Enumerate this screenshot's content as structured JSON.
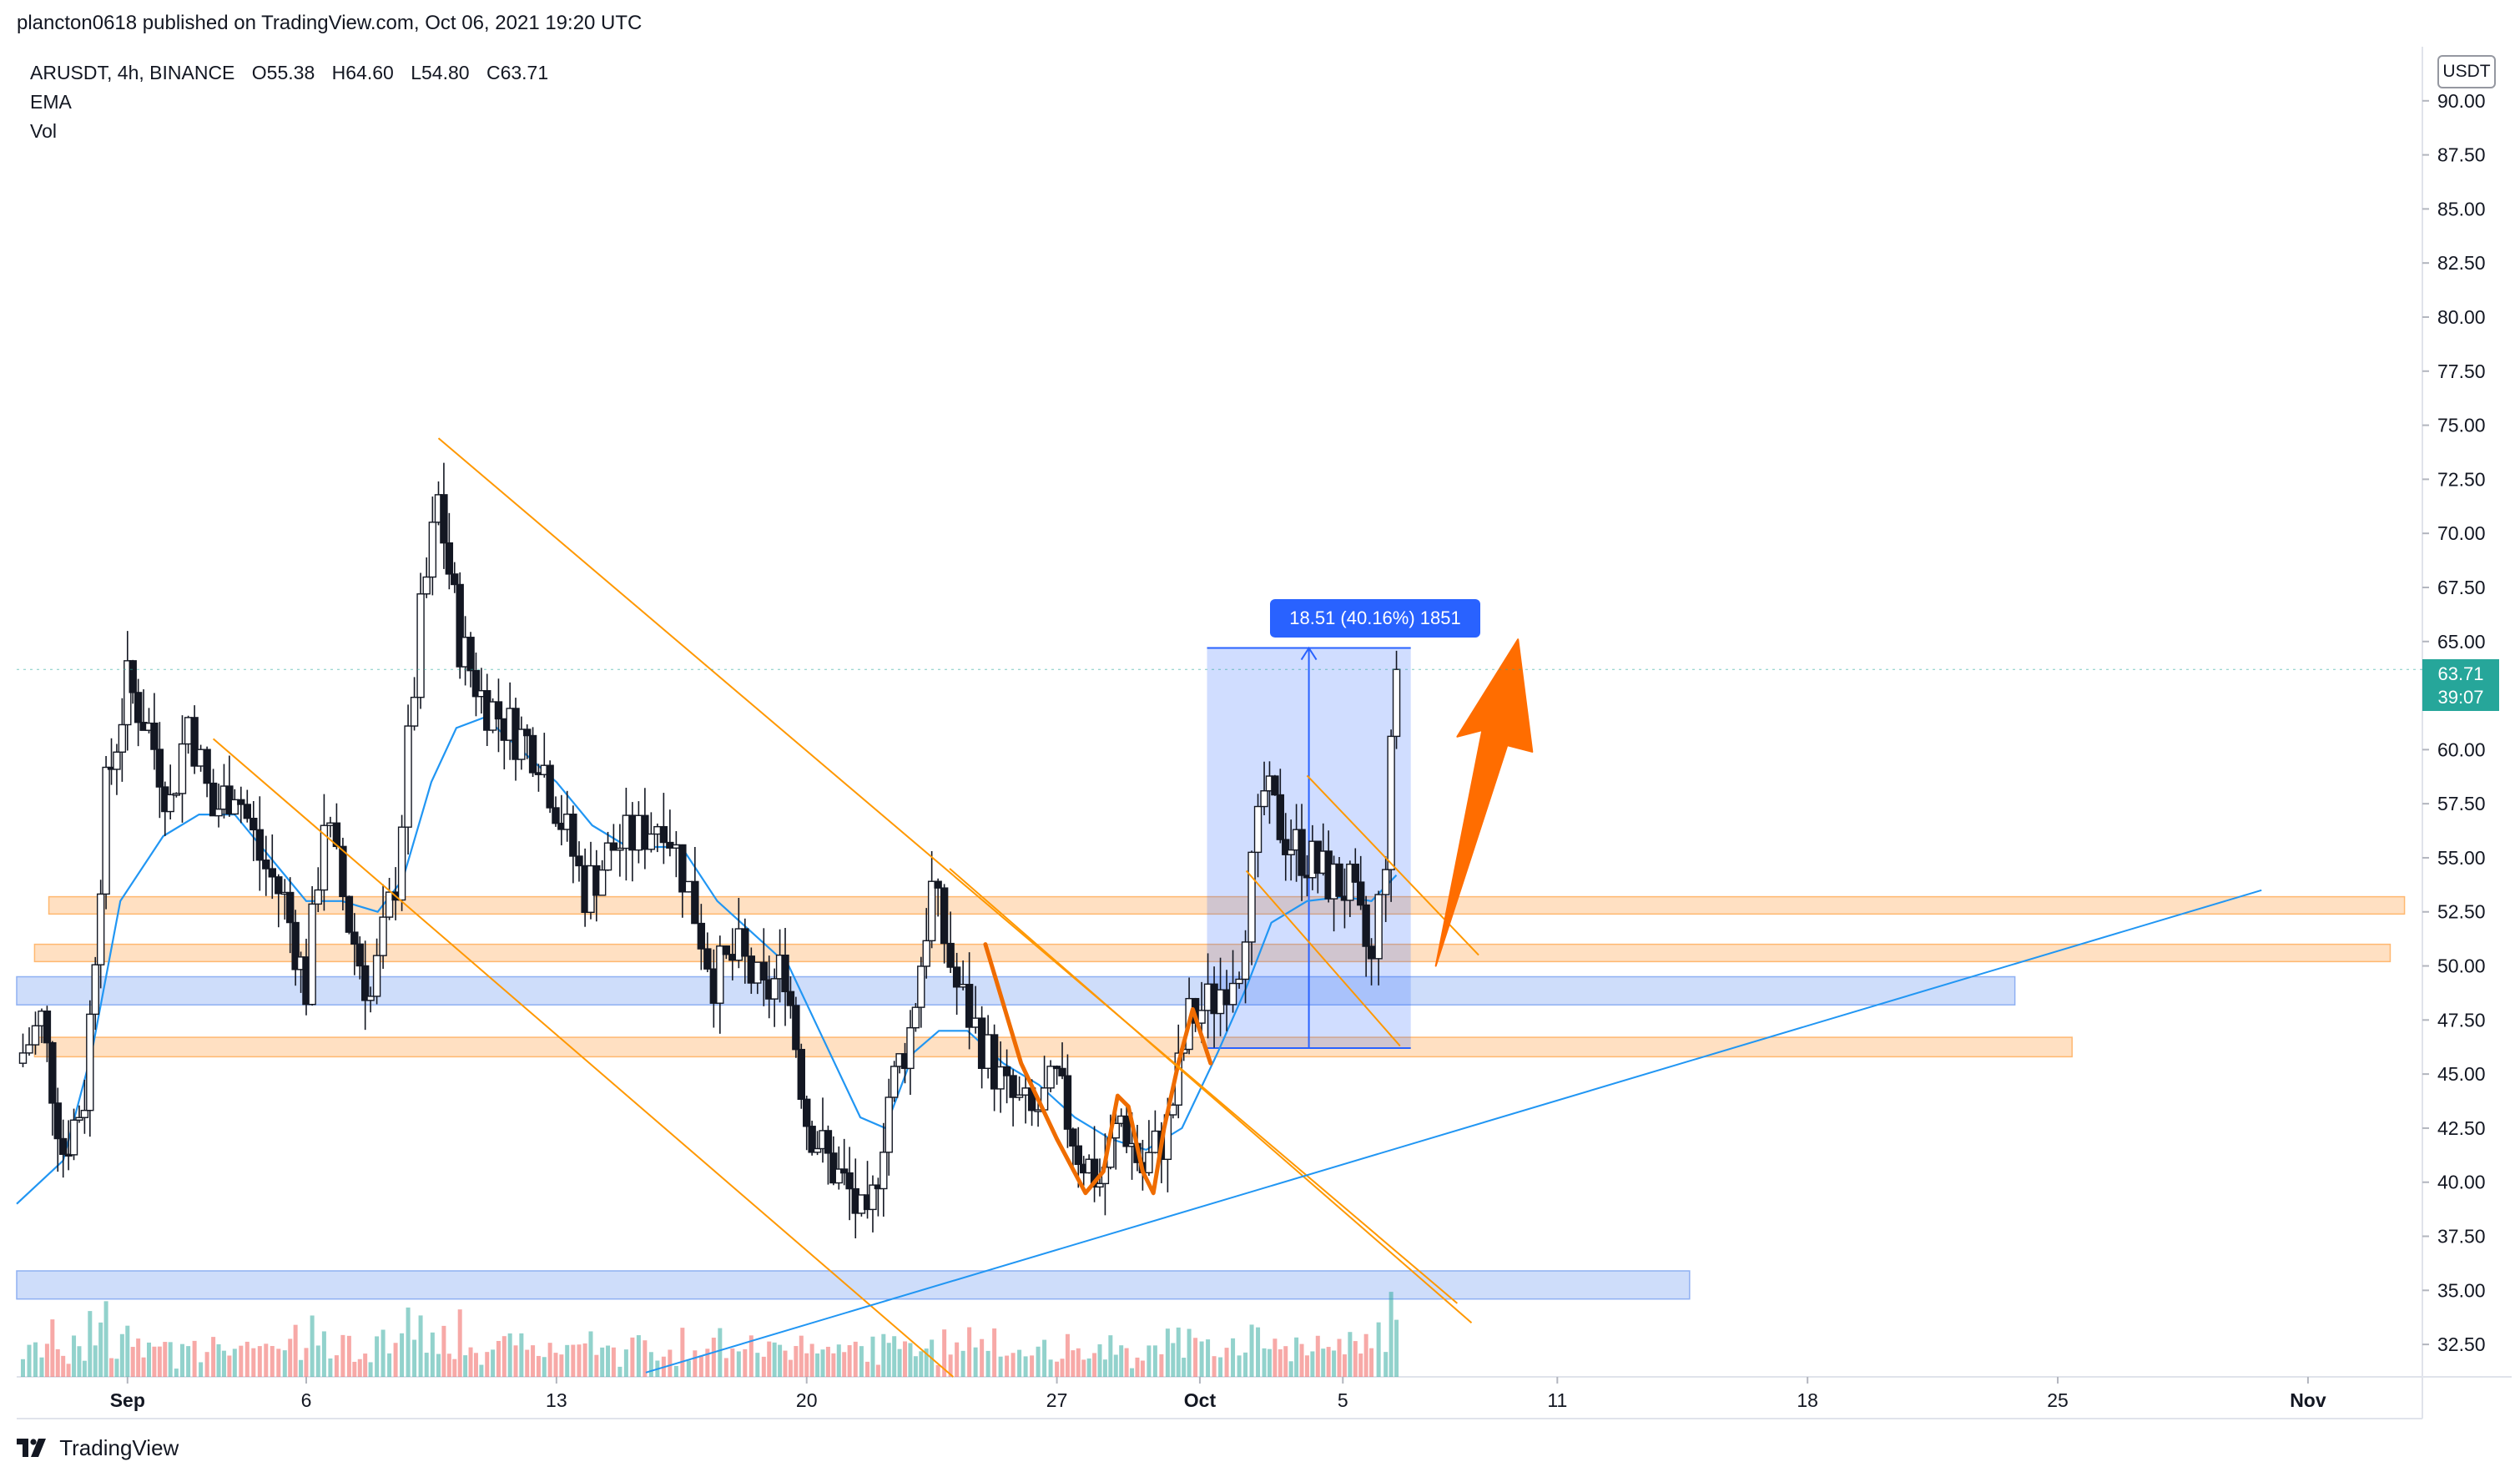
{
  "header": {
    "published": "plancton0618 published on TradingView.com, Oct 06, 2021 19:20 UTC"
  },
  "legend": {
    "symbol": "ARUSDT, 4h, BINANCE",
    "ohlc": {
      "o": "O55.38",
      "h": "H64.60",
      "l": "L54.80",
      "c": "C63.71"
    },
    "indicators": [
      "EMA",
      "Vol"
    ]
  },
  "footer": {
    "brand": "TradingView"
  },
  "axis": {
    "unit": "USDT",
    "current_price": "63.71",
    "countdown": "39:07"
  },
  "measure": {
    "label": "18.51 (40.16%) 1851"
  },
  "colors": {
    "up": "#26a69a",
    "down": "#ef5350",
    "candle": "#131722",
    "ema": "#2196f3",
    "orange_zone": "#ffcc99",
    "blue_zone": "#aec6f7",
    "trend_orange": "#ff9800",
    "trend_blue": "#2196f3",
    "arrow": "#ff6d00"
  },
  "chart_data": {
    "type": "candlestick",
    "y_ticks": [
      "32.50",
      "35.00",
      "37.50",
      "40.00",
      "42.50",
      "45.00",
      "47.50",
      "50.00",
      "52.50",
      "55.00",
      "57.50",
      "60.00",
      "62.50",
      "65.00",
      "67.50",
      "70.00",
      "72.50",
      "75.00",
      "77.50",
      "80.00",
      "82.50",
      "85.00",
      "87.50",
      "90.00"
    ],
    "ylim": [
      31.0,
      92.5
    ],
    "x_ticks": [
      {
        "label": "Sep",
        "day": 0
      },
      {
        "label": "6",
        "day": 5
      },
      {
        "label": "13",
        "day": 12
      },
      {
        "label": "20",
        "day": 19
      },
      {
        "label": "27",
        "day": 26
      },
      {
        "label": "Oct",
        "day": 30
      },
      {
        "label": "5",
        "day": 34
      },
      {
        "label": "11",
        "day": 40
      },
      {
        "label": "18",
        "day": 47
      },
      {
        "label": "25",
        "day": 54
      },
      {
        "label": "Nov",
        "day": 61
      }
    ],
    "xlim_days": [
      -3.1,
      64.2
    ],
    "swing_points": [
      {
        "day": -3.1,
        "price": 45.5
      },
      {
        "day": -2.4,
        "price": 47.5
      },
      {
        "day": -1.8,
        "price": 41.5
      },
      {
        "day": -1.2,
        "price": 44.0
      },
      {
        "day": -0.6,
        "price": 58.0
      },
      {
        "day": 0.0,
        "price": 63.0
      },
      {
        "day": 0.6,
        "price": 61.0
      },
      {
        "day": 1.2,
        "price": 57.5
      },
      {
        "day": 1.7,
        "price": 61.5
      },
      {
        "day": 2.4,
        "price": 57.0
      },
      {
        "day": 3.0,
        "price": 58.5
      },
      {
        "day": 3.7,
        "price": 55.0
      },
      {
        "day": 4.4,
        "price": 53.0
      },
      {
        "day": 5.0,
        "price": 49.0
      },
      {
        "day": 5.5,
        "price": 57.0
      },
      {
        "day": 6.2,
        "price": 52.0
      },
      {
        "day": 6.8,
        "price": 48.5
      },
      {
        "day": 7.5,
        "price": 54.0
      },
      {
        "day": 8.2,
        "price": 66.0
      },
      {
        "day": 8.7,
        "price": 71.5
      },
      {
        "day": 9.3,
        "price": 65.0
      },
      {
        "day": 9.9,
        "price": 62.5
      },
      {
        "day": 10.7,
        "price": 61.0
      },
      {
        "day": 11.5,
        "price": 60.0
      },
      {
        "day": 12.3,
        "price": 56.0
      },
      {
        "day": 12.8,
        "price": 53.5
      },
      {
        "day": 13.6,
        "price": 55.5
      },
      {
        "day": 14.3,
        "price": 56.0
      },
      {
        "day": 15.0,
        "price": 57.0
      },
      {
        "day": 15.7,
        "price": 53.5
      },
      {
        "day": 16.4,
        "price": 49.5
      },
      {
        "day": 17.1,
        "price": 50.5
      },
      {
        "day": 17.8,
        "price": 48.5
      },
      {
        "day": 18.4,
        "price": 50.0
      },
      {
        "day": 19.0,
        "price": 43.0
      },
      {
        "day": 19.6,
        "price": 41.0
      },
      {
        "day": 20.2,
        "price": 39.5
      },
      {
        "day": 20.7,
        "price": 37.5
      },
      {
        "day": 21.3,
        "price": 44.0
      },
      {
        "day": 21.9,
        "price": 47.0
      },
      {
        "day": 22.5,
        "price": 53.5
      },
      {
        "day": 23.2,
        "price": 49.0
      },
      {
        "day": 23.9,
        "price": 46.5
      },
      {
        "day": 24.6,
        "price": 44.0
      },
      {
        "day": 25.3,
        "price": 43.0
      },
      {
        "day": 26.0,
        "price": 44.5
      },
      {
        "day": 26.6,
        "price": 41.5
      },
      {
        "day": 27.2,
        "price": 40.0
      },
      {
        "day": 27.8,
        "price": 43.0
      },
      {
        "day": 28.4,
        "price": 40.5
      },
      {
        "day": 29.1,
        "price": 42.5
      },
      {
        "day": 29.7,
        "price": 47.5
      },
      {
        "day": 30.4,
        "price": 48.5
      },
      {
        "day": 31.1,
        "price": 50.5
      },
      {
        "day": 31.8,
        "price": 58.0
      },
      {
        "day": 32.4,
        "price": 56.0
      },
      {
        "day": 33.0,
        "price": 55.0
      },
      {
        "day": 33.6,
        "price": 54.0
      },
      {
        "day": 34.2,
        "price": 53.5
      },
      {
        "day": 34.8,
        "price": 50.0
      },
      {
        "day": 35.2,
        "price": 55.4
      },
      {
        "day": 35.5,
        "price": 63.71
      }
    ],
    "ema_points": [
      {
        "day": -3.1,
        "price": 39.0
      },
      {
        "day": -1.8,
        "price": 41.0
      },
      {
        "day": -1.0,
        "price": 46.0
      },
      {
        "day": -0.2,
        "price": 53.0
      },
      {
        "day": 1.0,
        "price": 56.0
      },
      {
        "day": 2.0,
        "price": 57.0
      },
      {
        "day": 3.0,
        "price": 57.0
      },
      {
        "day": 4.0,
        "price": 55.0
      },
      {
        "day": 5.0,
        "price": 53.0
      },
      {
        "day": 6.0,
        "price": 53.0
      },
      {
        "day": 7.0,
        "price": 52.5
      },
      {
        "day": 7.7,
        "price": 54.0
      },
      {
        "day": 8.5,
        "price": 58.5
      },
      {
        "day": 9.2,
        "price": 61.0
      },
      {
        "day": 10.0,
        "price": 61.5
      },
      {
        "day": 11.0,
        "price": 60.0
      },
      {
        "day": 12.0,
        "price": 58.5
      },
      {
        "day": 13.0,
        "price": 56.5
      },
      {
        "day": 14.0,
        "price": 55.5
      },
      {
        "day": 15.5,
        "price": 55.5
      },
      {
        "day": 16.5,
        "price": 53.0
      },
      {
        "day": 17.5,
        "price": 51.5
      },
      {
        "day": 18.5,
        "price": 50.0
      },
      {
        "day": 19.5,
        "price": 46.5
      },
      {
        "day": 20.5,
        "price": 43.0
      },
      {
        "day": 21.2,
        "price": 42.5
      },
      {
        "day": 22.0,
        "price": 46.0
      },
      {
        "day": 22.7,
        "price": 47.0
      },
      {
        "day": 23.5,
        "price": 47.0
      },
      {
        "day": 24.5,
        "price": 45.5
      },
      {
        "day": 25.5,
        "price": 44.5
      },
      {
        "day": 26.5,
        "price": 43.0
      },
      {
        "day": 27.5,
        "price": 42.0
      },
      {
        "day": 28.5,
        "price": 41.5
      },
      {
        "day": 29.5,
        "price": 42.5
      },
      {
        "day": 30.5,
        "price": 46.0
      },
      {
        "day": 31.3,
        "price": 49.0
      },
      {
        "day": 32.0,
        "price": 52.0
      },
      {
        "day": 33.0,
        "price": 53.0
      },
      {
        "day": 34.0,
        "price": 53.2
      },
      {
        "day": 34.8,
        "price": 53.0
      },
      {
        "day": 35.5,
        "price": 54.2
      }
    ],
    "zones": [
      {
        "color": "orange",
        "from_day": -2.2,
        "to_day": 63.7,
        "low": 52.4,
        "high": 53.2
      },
      {
        "color": "orange",
        "from_day": -2.6,
        "to_day": 63.3,
        "low": 50.2,
        "high": 51.0
      },
      {
        "color": "blue",
        "from_day": -3.1,
        "to_day": 52.8,
        "low": 48.2,
        "high": 49.5
      },
      {
        "color": "orange",
        "from_day": -2.6,
        "to_day": 54.4,
        "low": 45.8,
        "high": 46.7
      },
      {
        "color": "blue",
        "from_day": -3.1,
        "to_day": 43.7,
        "low": 34.6,
        "high": 35.9
      }
    ],
    "trend_lines": [
      {
        "color": "orange",
        "from": {
          "day": 8.7,
          "price": 74.4
        },
        "to": {
          "day": 37.2,
          "price": 34.4
        }
      },
      {
        "color": "orange",
        "from": {
          "day": 2.4,
          "price": 60.5
        },
        "to": {
          "day": 23.1,
          "price": 31.0
        }
      },
      {
        "color": "orange",
        "from": {
          "day": 23.0,
          "price": 54.5
        },
        "to": {
          "day": 37.6,
          "price": 33.5
        }
      },
      {
        "color": "orange",
        "from": {
          "day": 33.0,
          "price": 58.8
        },
        "to": {
          "day": 37.8,
          "price": 50.5
        }
      },
      {
        "color": "orange",
        "from": {
          "day": 31.3,
          "price": 54.4
        },
        "to": {
          "day": 35.6,
          "price": 46.3
        }
      },
      {
        "color": "blue",
        "from": {
          "day": 14.5,
          "price": 31.2
        },
        "to": {
          "day": 59.7,
          "price": 53.5
        }
      }
    ],
    "measure": {
      "from_day": 30.2,
      "to_day": 35.9,
      "low": 46.2,
      "high": 64.7
    },
    "volume_max": 70
  }
}
